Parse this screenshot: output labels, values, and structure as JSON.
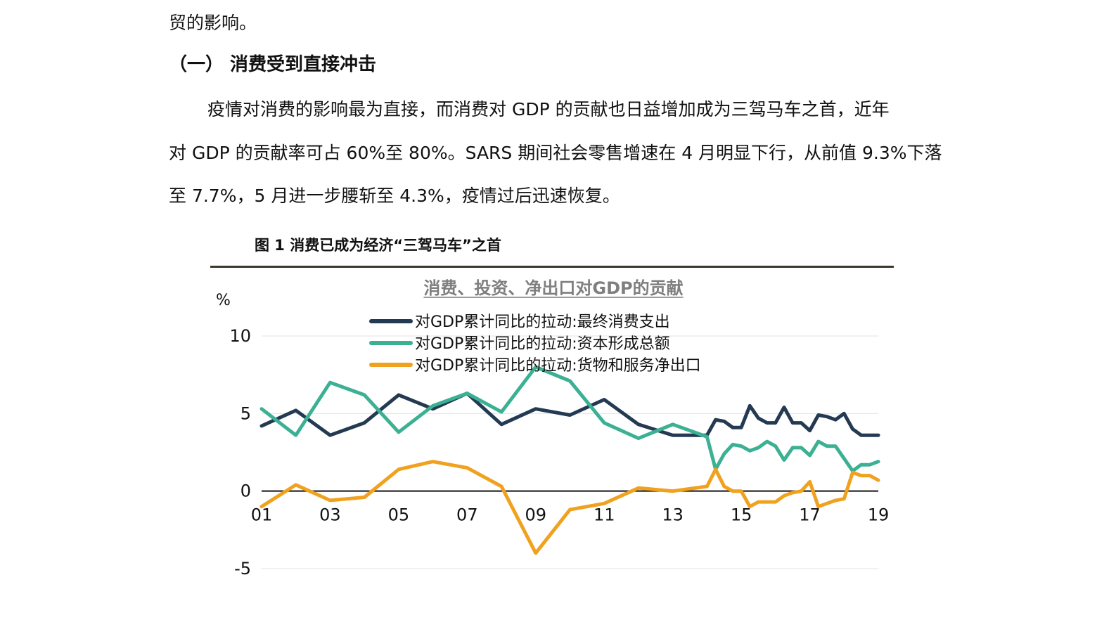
{
  "document": {
    "line_prev": "贸的影响。",
    "section_heading": "（一） 消费受到直接冲击",
    "paragraph_lines": [
      "疫情对消费的影响最为直接，而消费对 GDP 的贡献也日益增加成为三驾马车之首，近年",
      "对 GDP 的贡献率可占 60%至 80%。SARS 期间社会零售增速在 4 月明显下行，从前值 9.3%下落",
      "至 7.7%，5 月进一步腰斩至 4.3%，疫情过后迅速恢复。"
    ],
    "figure_caption": "图 1  消费已成为经济“三驾马车”之首"
  },
  "chart_data": {
    "type": "line",
    "title": "消费、投资、净出口对GDP的贡献",
    "ylabel": "%",
    "xlabel": "",
    "ylim": [
      -5,
      10
    ],
    "yticks": [
      -5,
      0,
      5,
      10
    ],
    "xlim": [
      2001,
      2019
    ],
    "xticks": [
      "01",
      "03",
      "05",
      "07",
      "09",
      "11",
      "13",
      "15",
      "17",
      "19"
    ],
    "grid": true,
    "legend_position": "top-center",
    "series": [
      {
        "name": "对GDP累计同比的拉动:最终消费支出",
        "color": "#243a53",
        "points": [
          [
            2001,
            4.2
          ],
          [
            2002,
            5.2
          ],
          [
            2003,
            3.6
          ],
          [
            2004,
            4.4
          ],
          [
            2005,
            6.2
          ],
          [
            2006,
            5.3
          ],
          [
            2007,
            6.3
          ],
          [
            2008,
            4.3
          ],
          [
            2009,
            5.3
          ],
          [
            2010,
            4.9
          ],
          [
            2011,
            5.9
          ],
          [
            2012,
            4.3
          ],
          [
            2013,
            3.6
          ],
          [
            2014,
            3.6
          ],
          [
            2014.25,
            4.6
          ],
          [
            2014.5,
            4.5
          ],
          [
            2014.75,
            4.1
          ],
          [
            2015,
            4.1
          ],
          [
            2015.25,
            5.5
          ],
          [
            2015.5,
            4.7
          ],
          [
            2015.75,
            4.4
          ],
          [
            2016,
            4.4
          ],
          [
            2016.25,
            5.4
          ],
          [
            2016.5,
            4.4
          ],
          [
            2016.75,
            4.4
          ],
          [
            2017,
            3.9
          ],
          [
            2017.25,
            4.9
          ],
          [
            2017.5,
            4.8
          ],
          [
            2017.75,
            4.6
          ],
          [
            2018,
            5.0
          ],
          [
            2018.25,
            4.0
          ],
          [
            2018.5,
            3.6
          ],
          [
            2018.75,
            3.6
          ],
          [
            2019,
            3.6
          ]
        ]
      },
      {
        "name": "对GDP累计同比的拉动:资本形成总额",
        "color": "#3bb093",
        "points": [
          [
            2001,
            5.3
          ],
          [
            2002,
            3.6
          ],
          [
            2003,
            7.0
          ],
          [
            2004,
            6.2
          ],
          [
            2005,
            3.8
          ],
          [
            2006,
            5.5
          ],
          [
            2007,
            6.3
          ],
          [
            2008,
            5.1
          ],
          [
            2009,
            8.0
          ],
          [
            2010,
            7.1
          ],
          [
            2011,
            4.4
          ],
          [
            2012,
            3.4
          ],
          [
            2013,
            4.3
          ],
          [
            2014,
            3.5
          ],
          [
            2014.25,
            1.4
          ],
          [
            2014.5,
            2.4
          ],
          [
            2014.75,
            3.0
          ],
          [
            2015,
            2.9
          ],
          [
            2015.25,
            2.6
          ],
          [
            2015.5,
            2.8
          ],
          [
            2015.75,
            3.2
          ],
          [
            2016,
            2.9
          ],
          [
            2016.25,
            2.0
          ],
          [
            2016.5,
            2.8
          ],
          [
            2016.75,
            2.8
          ],
          [
            2017,
            2.3
          ],
          [
            2017.25,
            3.2
          ],
          [
            2017.5,
            2.9
          ],
          [
            2017.75,
            2.9
          ],
          [
            2018,
            2.1
          ],
          [
            2018.25,
            1.3
          ],
          [
            2018.5,
            1.7
          ],
          [
            2018.75,
            1.7
          ],
          [
            2019,
            1.9
          ]
        ]
      },
      {
        "name": "对GDP累计同比的拉动:货物和服务净出口",
        "color": "#f0a21e",
        "points": [
          [
            2001,
            -1.0
          ],
          [
            2002,
            0.4
          ],
          [
            2003,
            -0.6
          ],
          [
            2004,
            -0.4
          ],
          [
            2005,
            1.4
          ],
          [
            2006,
            1.9
          ],
          [
            2007,
            1.5
          ],
          [
            2008,
            0.3
          ],
          [
            2009,
            -4.0
          ],
          [
            2010,
            -1.2
          ],
          [
            2011,
            -0.8
          ],
          [
            2012,
            0.2
          ],
          [
            2013,
            0.0
          ],
          [
            2014,
            0.3
          ],
          [
            2014.25,
            1.4
          ],
          [
            2014.5,
            0.3
          ],
          [
            2014.75,
            0.0
          ],
          [
            2015,
            0.0
          ],
          [
            2015.25,
            -1.0
          ],
          [
            2015.5,
            -0.7
          ],
          [
            2015.75,
            -0.7
          ],
          [
            2016,
            -0.7
          ],
          [
            2016.25,
            -0.3
          ],
          [
            2016.5,
            -0.1
          ],
          [
            2016.75,
            0.0
          ],
          [
            2017,
            0.6
          ],
          [
            2017.25,
            -1.0
          ],
          [
            2017.5,
            -0.8
          ],
          [
            2017.75,
            -0.6
          ],
          [
            2018,
            -0.5
          ],
          [
            2018.25,
            1.2
          ],
          [
            2018.5,
            1.0
          ],
          [
            2018.75,
            1.0
          ],
          [
            2019,
            0.7
          ]
        ]
      }
    ]
  }
}
